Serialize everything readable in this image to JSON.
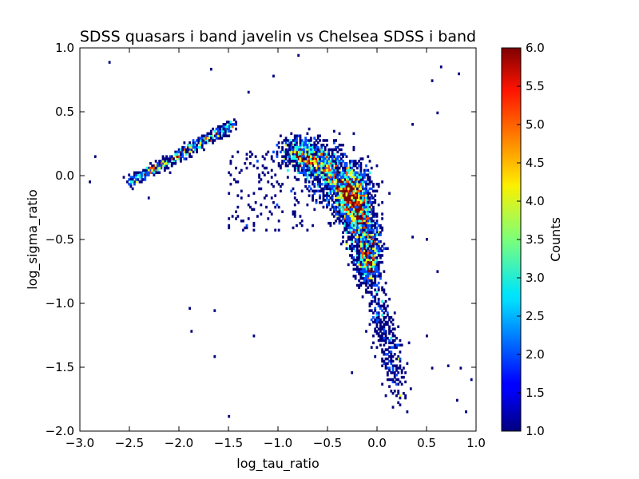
{
  "chart_data": {
    "type": "heatmap",
    "title": "SDSS quasars i band javelin vs Chelsea SDSS i band",
    "xlabel": "log_tau_ratio",
    "ylabel": "log_sigma_ratio",
    "xlim": [
      -3.0,
      1.0
    ],
    "ylim": [
      -2.0,
      1.0
    ],
    "x_ticks": [
      "−3.0",
      "−2.5",
      "−2.0",
      "−1.5",
      "−1.0",
      "−0.5",
      "0.0",
      "0.5",
      "1.0"
    ],
    "y_ticks": [
      "−2.0",
      "−1.5",
      "−1.0",
      "−0.5",
      "0.0",
      "0.5",
      "1.0"
    ],
    "grid": false,
    "colorbar": {
      "label": "Counts",
      "range": [
        1.0,
        6.0
      ],
      "ticks": [
        "1.0",
        "1.5",
        "2.0",
        "2.5",
        "3.0",
        "3.5",
        "4.0",
        "4.5",
        "5.0",
        "5.5",
        "6.0"
      ],
      "colormap": "jet"
    },
    "density_regions": [
      {
        "name": "diagonal band",
        "x_range": [
          -2.5,
          -1.45
        ],
        "y_range": [
          -0.05,
          0.4
        ],
        "typical_counts": 1.5
      },
      {
        "name": "main arc",
        "x_range": [
          -0.9,
          0.0
        ],
        "y_range": [
          -0.8,
          0.2
        ],
        "peak": [
          -0.25,
          -0.15
        ],
        "peak_counts": 3.5
      },
      {
        "name": "tail",
        "x_range": [
          -0.15,
          0.4
        ],
        "y_range": [
          -1.8,
          -0.8
        ],
        "typical_counts": 1.3
      }
    ],
    "sparse_outliers": [
      [
        -2.7,
        0.88
      ],
      [
        -1.68,
        0.84
      ],
      [
        -1.05,
        0.78
      ],
      [
        -0.8,
        0.95
      ],
      [
        0.65,
        0.86
      ],
      [
        0.55,
        0.75
      ],
      [
        0.83,
        0.8
      ],
      [
        0.6,
        0.5
      ],
      [
        0.35,
        0.4
      ],
      [
        -1.3,
        0.65
      ],
      [
        -2.85,
        0.15
      ],
      [
        -2.4,
        -0.05
      ],
      [
        -1.65,
        -1.05
      ],
      [
        -1.9,
        -1.03
      ],
      [
        -1.88,
        -1.22
      ],
      [
        -1.25,
        -1.25
      ],
      [
        -1.5,
        -1.88
      ],
      [
        -1.65,
        -1.42
      ],
      [
        0.85,
        -1.5
      ],
      [
        0.9,
        -1.85
      ],
      [
        0.5,
        -1.25
      ],
      [
        0.55,
        -1.5
      ],
      [
        0.8,
        -1.75
      ],
      [
        0.95,
        -1.6
      ],
      [
        0.72,
        -1.48
      ],
      [
        0.35,
        -0.48
      ],
      [
        0.5,
        -0.5
      ],
      [
        0.6,
        -0.75
      ],
      [
        -0.25,
        -1.55
      ],
      [
        -2.3,
        -0.18
      ],
      [
        -2.9,
        -0.05
      ]
    ]
  }
}
